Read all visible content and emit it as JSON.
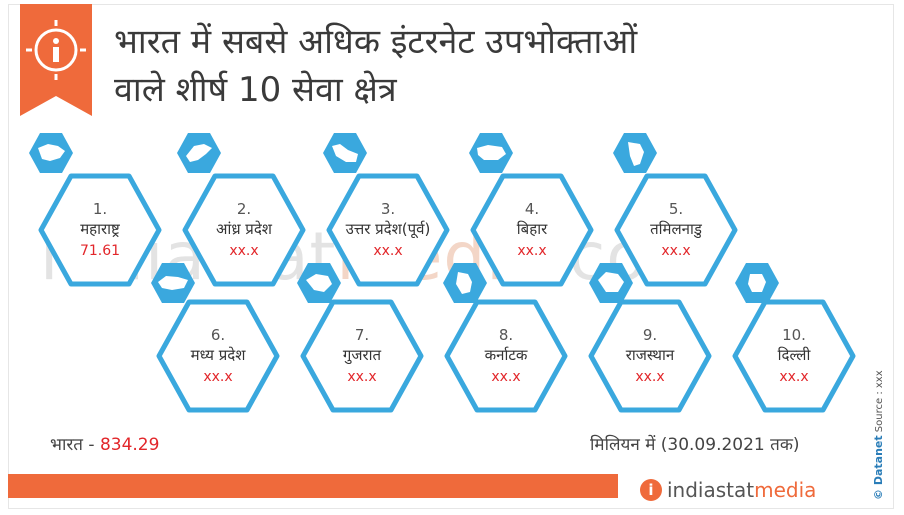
{
  "title": {
    "line1": "भारत में सबसे अधिक इंटरनेट उपभोक्ताओं",
    "line2": "वाले शीर्ष 10 सेवा क्षेत्र"
  },
  "watermark": {
    "part1": "indiastat",
    "part2": "media",
    "part3": ".com"
  },
  "states": [
    {
      "rank": "1.",
      "name": "महाराष्ट्र",
      "value": "71.61"
    },
    {
      "rank": "2.",
      "name": "आंध्र प्रदेश",
      "value": "xx.x"
    },
    {
      "rank": "3.",
      "name": "उत्तर प्रदेश(पूर्व)",
      "value": "xx.x"
    },
    {
      "rank": "4.",
      "name": "बिहार",
      "value": "xx.x"
    },
    {
      "rank": "5.",
      "name": "तमिलनाडु",
      "value": "xx.x"
    },
    {
      "rank": "6.",
      "name": "मध्य प्रदेश",
      "value": "xx.x"
    },
    {
      "rank": "7.",
      "name": "गुजरात",
      "value": "xx.x"
    },
    {
      "rank": "8.",
      "name": "कर्नाटक",
      "value": "xx.x"
    },
    {
      "rank": "9.",
      "name": "राजस्थान",
      "value": "xx.x"
    },
    {
      "rank": "10.",
      "name": "दिल्ली",
      "value": "xx.x"
    }
  ],
  "india": {
    "label": "भारत",
    "separator": "-",
    "value": "834.29"
  },
  "unit": "मिलियन में (30.09.2021 तक)",
  "source": {
    "brand": "© Datanet",
    "text": "Source : xxx"
  },
  "footer": {
    "logo_part1": "indiastat",
    "logo_part2": "media",
    "icon_letter": "i"
  },
  "colors": {
    "accent": "#ef6a3b",
    "hex_border": "#3aa8de",
    "value_red": "#e2262a"
  }
}
